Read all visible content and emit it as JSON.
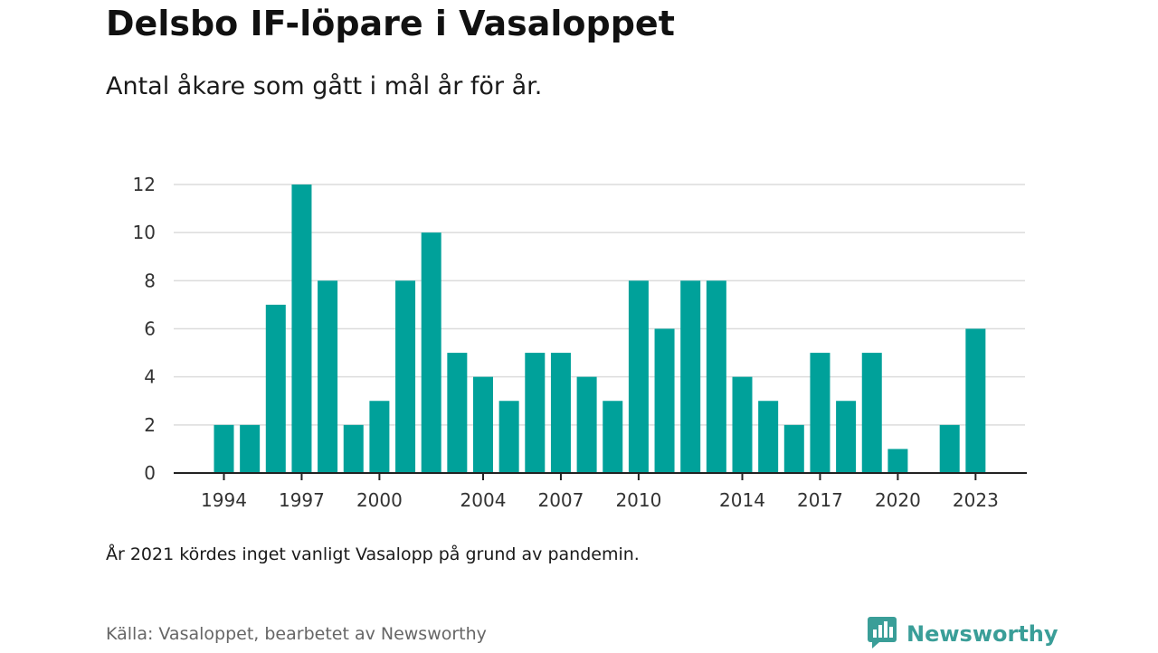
{
  "title": "Delsbo IF-löpare i Vasaloppet",
  "subtitle": "Antal åkare som gått i mål år för år.",
  "note": "År 2021 kördes inget vanligt Vasalopp på grund av pandemin.",
  "source": "Källa: Vasaloppet, bearbetet av Newsworthy",
  "brand": {
    "name": "Newsworthy",
    "icon": "newsworthy-logo-icon",
    "color": "#3a9e98"
  },
  "colors": {
    "bar": "#00a19a",
    "grid": "#dcdcdc",
    "axis": "#222222"
  },
  "chart_data": {
    "type": "bar",
    "categories": [
      "1994",
      "1995",
      "1996",
      "1997",
      "1998",
      "1999",
      "2000",
      "2001",
      "2002",
      "2003",
      "2004",
      "2005",
      "2006",
      "2007",
      "2008",
      "2009",
      "2010",
      "2011",
      "2012",
      "2013",
      "2014",
      "2015",
      "2016",
      "2017",
      "2018",
      "2019",
      "2020",
      "2021",
      "2022",
      "2023"
    ],
    "values": [
      2,
      2,
      7,
      12,
      8,
      2,
      3,
      8,
      10,
      5,
      4,
      3,
      5,
      5,
      4,
      3,
      8,
      6,
      8,
      8,
      4,
      3,
      2,
      5,
      3,
      5,
      1,
      null,
      2,
      6
    ],
    "xticks": [
      "1994",
      "1997",
      "2000",
      "2004",
      "2007",
      "2010",
      "2014",
      "2017",
      "2020",
      "2023"
    ],
    "yticks": [
      0,
      2,
      4,
      6,
      8,
      10,
      12
    ],
    "ylim": [
      0,
      12
    ],
    "grid": true,
    "xlabel": "",
    "ylabel": ""
  }
}
